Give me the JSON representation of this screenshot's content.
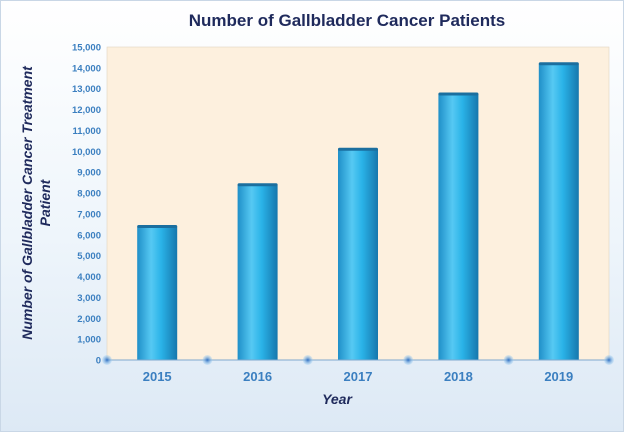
{
  "chart_data": {
    "type": "bar",
    "title": "Number of Gallbladder Cancer Patients",
    "xlabel": "Year",
    "ylabel_lines": [
      "Number of Gallbladder  Cancer Treatment",
      "Patient"
    ],
    "categories": [
      "2015",
      "2016",
      "2017",
      "2018",
      "2019"
    ],
    "values": [
      6400,
      8400,
      10100,
      12750,
      14200
    ],
    "ylim": [
      0,
      15000
    ],
    "yticks": [
      "0",
      "1,000",
      "2,000",
      "3,000",
      "4,000",
      "5,000",
      "6,000",
      "7,000",
      "8,000",
      "9,000",
      "10,000",
      "11,000",
      "12,000",
      "13,000",
      "14,000",
      "15,000"
    ],
    "grid": false,
    "legend": "none",
    "colors": {
      "plot_background": "#fdf0de",
      "bar": "#2ab3e8",
      "title": "#1f2a5c",
      "tick_text": "#3b7fc0",
      "axis_dots": "#7fb8e6"
    }
  }
}
